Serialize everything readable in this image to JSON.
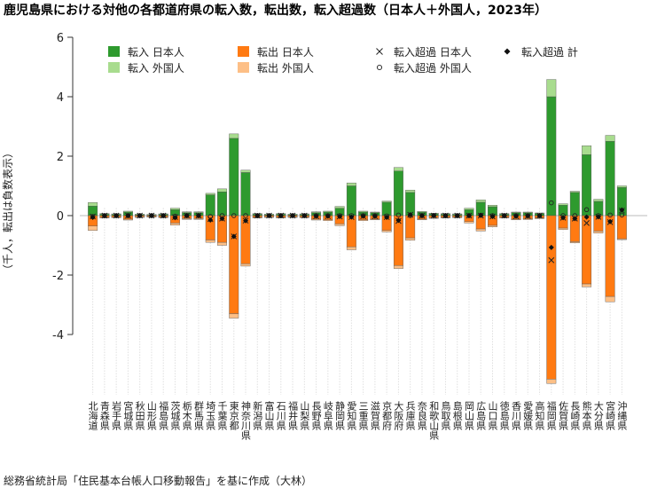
{
  "chart_data": {
    "type": "bar",
    "title": "鹿児島県における対他の各都道府県の転入数，転出数，転入超過数（日本人＋外国人，2023年）",
    "ylabel": "（千人，転出は負数表示）",
    "footer": "総務省統計局「住民基本台帳人口移動報告」を基に作成（大林）",
    "ylim": [
      -5.9,
      6
    ],
    "yticks": [
      -4,
      -2,
      0,
      2,
      4,
      6
    ],
    "grid": false,
    "legend_position": "top",
    "legend": [
      {
        "label": "転入 日本人",
        "kind": "bar",
        "color": "#2e9a2e"
      },
      {
        "label": "転入 外国人",
        "kind": "bar",
        "color": "#a8dc8e"
      },
      {
        "label": "転出 日本人",
        "kind": "bar",
        "color": "#ff7a12"
      },
      {
        "label": "転出 外国人",
        "kind": "bar",
        "color": "#fdbf86"
      },
      {
        "label": "転入超過 日本人",
        "kind": "cross"
      },
      {
        "label": "転入超過 外国人",
        "kind": "circle"
      },
      {
        "label": "転入超過 計",
        "kind": "diamond"
      }
    ],
    "categories": [
      "北海道",
      "青森県",
      "岩手県",
      "宮城県",
      "秋田県",
      "山形県",
      "福島県",
      "茨城県",
      "栃木県",
      "群馬県",
      "埼玉県",
      "千葉県",
      "東京都",
      "神奈川県",
      "新潟県",
      "富山県",
      "石川県",
      "福井県",
      "山梨県",
      "長野県",
      "岐阜県",
      "静岡県",
      "愛知県",
      "三重県",
      "滋賀県",
      "京都府",
      "大阪府",
      "兵庫県",
      "奈良県",
      "和歌山県",
      "鳥取県",
      "島根県",
      "岡山県",
      "広島県",
      "山口県",
      "徳島県",
      "香川県",
      "愛媛県",
      "高知県",
      "福岡県",
      "佐賀県",
      "長崎県",
      "熊本県",
      "大分県",
      "宮崎県",
      "沖縄県"
    ],
    "series": [
      {
        "name": "転入 日本人",
        "color": "#2e9a2e",
        "values": [
          0.32,
          0.06,
          0.05,
          0.12,
          0.04,
          0.03,
          0.05,
          0.2,
          0.1,
          0.1,
          0.7,
          0.8,
          2.6,
          1.45,
          0.06,
          0.04,
          0.06,
          0.04,
          0.05,
          0.1,
          0.12,
          0.25,
          1.0,
          0.12,
          0.1,
          0.45,
          1.5,
          0.78,
          0.12,
          0.07,
          0.06,
          0.05,
          0.2,
          0.45,
          0.3,
          0.06,
          0.1,
          0.1,
          0.08,
          4.0,
          0.35,
          0.78,
          2.05,
          0.48,
          2.5,
          0.95
        ]
      },
      {
        "name": "転入 外国人",
        "color": "#a8dc8e",
        "values": [
          0.12,
          0.01,
          0.01,
          0.03,
          0.01,
          0.01,
          0.01,
          0.05,
          0.03,
          0.03,
          0.05,
          0.1,
          0.15,
          0.08,
          0.01,
          0.01,
          0.01,
          0.01,
          0.01,
          0.03,
          0.03,
          0.06,
          0.1,
          0.03,
          0.02,
          0.04,
          0.12,
          0.08,
          0.02,
          0.01,
          0.01,
          0.01,
          0.05,
          0.08,
          0.05,
          0.01,
          0.02,
          0.02,
          0.01,
          0.58,
          0.05,
          0.04,
          0.3,
          0.07,
          0.2,
          0.05
        ]
      },
      {
        "name": "転出 日本人",
        "color": "#ff7a12",
        "values": [
          -0.35,
          -0.06,
          -0.05,
          -0.12,
          -0.04,
          -0.03,
          -0.05,
          -0.25,
          -0.1,
          -0.1,
          -0.82,
          -0.9,
          -3.3,
          -1.62,
          -0.06,
          -0.04,
          -0.06,
          -0.04,
          -0.05,
          -0.12,
          -0.14,
          -0.28,
          -1.05,
          -0.14,
          -0.12,
          -0.5,
          -1.68,
          -0.75,
          -0.12,
          -0.07,
          -0.06,
          -0.05,
          -0.2,
          -0.45,
          -0.33,
          -0.06,
          -0.12,
          -0.11,
          -0.08,
          -5.5,
          -0.42,
          -0.88,
          -2.3,
          -0.52,
          -2.72,
          -0.78
        ]
      },
      {
        "name": "転出 外国人",
        "color": "#fdbf86",
        "values": [
          -0.15,
          -0.01,
          -0.01,
          -0.03,
          -0.01,
          -0.01,
          -0.01,
          -0.07,
          -0.03,
          -0.03,
          -0.08,
          -0.1,
          -0.15,
          -0.08,
          -0.01,
          -0.01,
          -0.01,
          -0.01,
          -0.01,
          -0.03,
          -0.03,
          -0.06,
          -0.1,
          -0.03,
          -0.02,
          -0.05,
          -0.1,
          -0.08,
          -0.02,
          -0.01,
          -0.01,
          -0.01,
          -0.05,
          -0.07,
          -0.05,
          -0.01,
          -0.02,
          -0.02,
          -0.01,
          -0.15,
          -0.05,
          -0.04,
          -0.1,
          -0.07,
          -0.18,
          -0.03
        ]
      }
    ],
    "net": {
      "japanese": [
        -0.03,
        0.0,
        0.0,
        0.0,
        0.0,
        0.0,
        0.0,
        -0.05,
        0.0,
        0.0,
        -0.12,
        -0.1,
        -0.7,
        -0.17,
        0.0,
        0.0,
        0.0,
        0.0,
        0.0,
        -0.02,
        -0.02,
        -0.03,
        -0.05,
        -0.02,
        -0.02,
        -0.05,
        -0.18,
        0.03,
        0.0,
        0.0,
        0.0,
        0.0,
        0.0,
        0.0,
        -0.03,
        0.0,
        -0.02,
        -0.01,
        0.0,
        -1.5,
        -0.07,
        -0.1,
        -0.25,
        -0.04,
        -0.22,
        0.17
      ],
      "foreign": [
        -0.03,
        0.0,
        0.0,
        0.0,
        0.0,
        0.0,
        0.0,
        -0.02,
        0.0,
        0.0,
        -0.03,
        0.0,
        0.0,
        0.0,
        0.0,
        0.0,
        0.0,
        0.0,
        0.0,
        0.0,
        0.0,
        0.0,
        0.0,
        0.0,
        0.0,
        -0.01,
        0.02,
        0.0,
        0.0,
        0.0,
        0.0,
        0.0,
        0.0,
        0.01,
        0.0,
        0.0,
        0.0,
        0.0,
        0.0,
        0.43,
        0.0,
        0.0,
        0.2,
        0.0,
        0.02,
        0.02
      ],
      "total": [
        -0.06,
        0.0,
        0.0,
        0.0,
        0.0,
        0.0,
        0.0,
        -0.07,
        0.0,
        0.0,
        -0.15,
        -0.1,
        -0.7,
        -0.17,
        0.0,
        0.0,
        0.0,
        0.0,
        0.0,
        -0.02,
        -0.02,
        -0.03,
        -0.05,
        -0.02,
        -0.02,
        -0.06,
        -0.16,
        0.03,
        0.0,
        0.0,
        0.0,
        0.0,
        0.0,
        0.01,
        -0.03,
        0.0,
        -0.02,
        -0.01,
        0.0,
        -1.07,
        -0.07,
        -0.1,
        -0.05,
        -0.04,
        -0.2,
        0.19
      ]
    }
  }
}
